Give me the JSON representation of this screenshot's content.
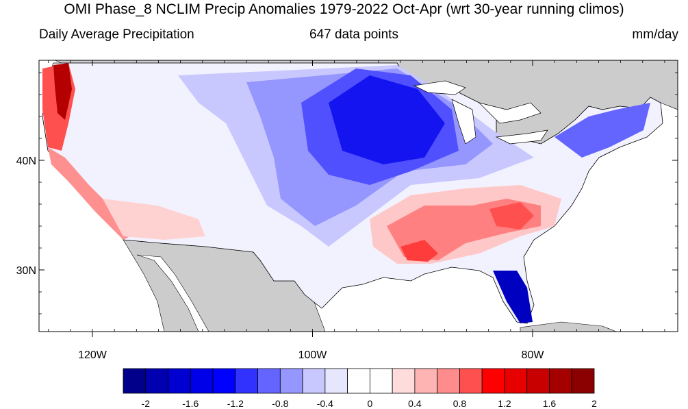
{
  "title": "OMI Phase_8 NCLIM Precip Anomalies 1979-2022 Oct-Apr (wrt 30-year running climos)",
  "subtitle_left": "Daily Average Precipitation",
  "subtitle_center": "647 data points",
  "subtitle_right": "mm/day",
  "map": {
    "lat_ticks": [
      {
        "label": "40N",
        "value": 40
      },
      {
        "label": "30N",
        "value": 30
      }
    ],
    "lon_ticks": [
      {
        "label": "120W",
        "value": -120
      },
      {
        "label": "100W",
        "value": -100
      },
      {
        "label": "80W",
        "value": -80
      }
    ],
    "land_color": "#ffffff",
    "ocean_color": "#ffffff",
    "masked_land_color": "#cccccc"
  },
  "colorbar": {
    "colors": [
      "#00008b",
      "#0000b0",
      "#0000d0",
      "#0000e8",
      "#0000ff",
      "#3232ff",
      "#6464ff",
      "#9696ff",
      "#c8c8ff",
      "#e6e6ff",
      "#ffffff",
      "#ffffff",
      "#ffdcdc",
      "#ffb4b4",
      "#ff8c8c",
      "#ff5050",
      "#ff0000",
      "#e60000",
      "#c80000",
      "#a50000",
      "#8b0000"
    ],
    "labels": [
      "-2",
      "-1.6",
      "-1.2",
      "-0.8",
      "-0.4",
      "0",
      "0.4",
      "0.8",
      "1.2",
      "1.6",
      "2"
    ]
  }
}
